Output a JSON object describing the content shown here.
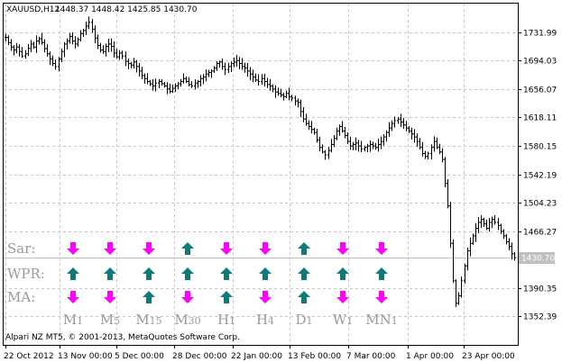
{
  "header": {
    "symbol_title": "XAUUSD,H12",
    "ohlc": "1448.37 1448.42 1425.85 1430.70"
  },
  "footer": {
    "copyright": "Alpari NZ MT5, © 2001-2013, MetaQuotes Software Corp."
  },
  "colors": {
    "background": "#ffffff",
    "grid": "#c8c8c8",
    "bars": "#000000",
    "arrow_up": "#0f7a78",
    "arrow_down": "#ff00ff",
    "label_gray": "#9a9a9a",
    "price_tag": "#c0c0c0"
  },
  "panel": {
    "indicators": [
      {
        "label": "Sar:",
        "signals": [
          "down",
          "down",
          "down",
          "up",
          "down",
          "down",
          "up",
          "down",
          "down"
        ]
      },
      {
        "label": "WPR:",
        "signals": [
          "up",
          "up",
          "up",
          "up",
          "up",
          "up",
          "up",
          "up",
          "up"
        ]
      },
      {
        "label": "MA:",
        "signals": [
          "down",
          "down",
          "up",
          "down",
          "up",
          "down",
          "up",
          "down",
          "down"
        ]
      }
    ],
    "timeframes": [
      {
        "main": "M",
        "sub": "1"
      },
      {
        "main": "M",
        "sub": "5"
      },
      {
        "main": "M",
        "sub": "15"
      },
      {
        "main": "M",
        "sub": "30"
      },
      {
        "main": "H",
        "sub": "1"
      },
      {
        "main": "H",
        "sub": "4"
      },
      {
        "main": "D",
        "sub": "1"
      },
      {
        "main": "W",
        "sub": "1"
      },
      {
        "main": "MN",
        "sub": "1"
      }
    ]
  },
  "chart_data": {
    "type": "candlestick",
    "current_price": "1430.70",
    "y_ticks": [
      "1731.99",
      "1694.03",
      "1656.07",
      "1618.11",
      "1580.15",
      "1542.19",
      "1504.23",
      "1466.27",
      "1390.35",
      "1352.39"
    ],
    "ylim": [
      1314.5,
      1770
    ],
    "x_ticks": [
      "22 Oct 2012",
      "13 Nov 00:00",
      "5 Dec 00:00",
      "28 Dec 00:00",
      "22 Jan 00:00",
      "13 Feb 00:00",
      "7 Mar 00:00",
      "1 Apr 00:00",
      "23 Apr 00:00"
    ],
    "price_path": [
      1725,
      1718,
      1712,
      1708,
      1712,
      1706,
      1700,
      1703,
      1710,
      1716,
      1712,
      1720,
      1723,
      1718,
      1710,
      1703,
      1696,
      1690,
      1686,
      1696,
      1706,
      1716,
      1720,
      1726,
      1720,
      1716,
      1722,
      1730,
      1734,
      1740,
      1745,
      1736,
      1724,
      1714,
      1708,
      1706,
      1713,
      1716,
      1713,
      1704,
      1699,
      1704,
      1700,
      1693,
      1690,
      1688,
      1692,
      1686,
      1680,
      1674,
      1670,
      1666,
      1663,
      1660,
      1664,
      1666,
      1663,
      1660,
      1656,
      1653,
      1657,
      1660,
      1663,
      1666,
      1670,
      1666,
      1662,
      1660,
      1664,
      1666,
      1670,
      1672,
      1676,
      1678,
      1680,
      1684,
      1690,
      1692,
      1686,
      1682,
      1686,
      1690,
      1692,
      1694,
      1690,
      1686,
      1684,
      1680,
      1676,
      1672,
      1668,
      1666,
      1670,
      1666,
      1662,
      1660,
      1656,
      1652,
      1650,
      1648,
      1646,
      1650,
      1646,
      1644,
      1640,
      1638,
      1626,
      1616,
      1610,
      1606,
      1602,
      1598,
      1588,
      1578,
      1572,
      1568,
      1574,
      1582,
      1590,
      1600,
      1606,
      1600,
      1594,
      1586,
      1580,
      1582,
      1584,
      1580,
      1576,
      1578,
      1580,
      1582,
      1580,
      1578,
      1582,
      1586,
      1592,
      1598,
      1604,
      1610,
      1614,
      1616,
      1612,
      1608,
      1604,
      1600,
      1596,
      1592,
      1586,
      1578,
      1570,
      1566,
      1570,
      1578,
      1586,
      1578,
      1572,
      1562,
      1530,
      1500,
      1450,
      1400,
      1370,
      1380,
      1400,
      1420,
      1440,
      1450,
      1460,
      1470,
      1478,
      1482,
      1476,
      1470,
      1478,
      1482,
      1478,
      1474,
      1466,
      1460,
      1452,
      1446,
      1436,
      1431
    ]
  }
}
